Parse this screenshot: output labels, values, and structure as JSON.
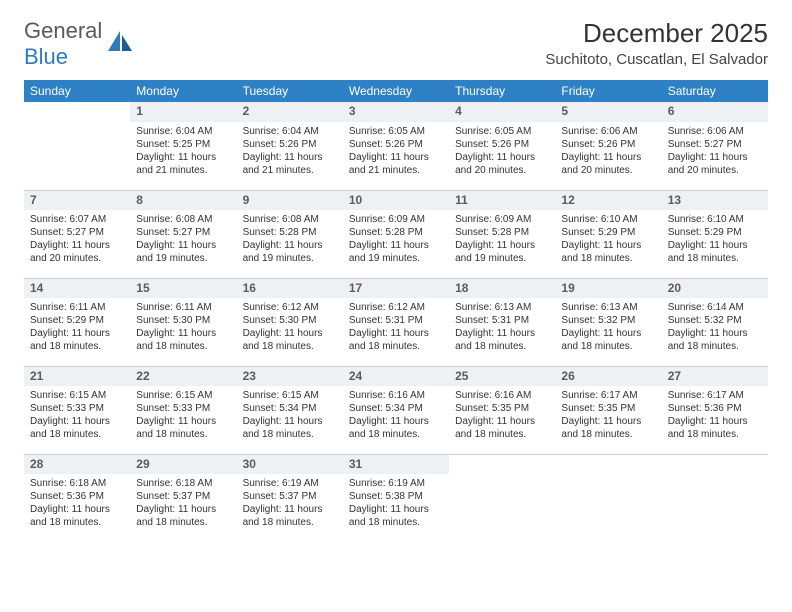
{
  "brand": {
    "part1": "General",
    "part2": "Blue",
    "accent": "#2d7bbd",
    "gray": "#5a5a5a"
  },
  "title": "December 2025",
  "location": "Suchitoto, Cuscatlan, El Salvador",
  "header_bg": "#2d81c4",
  "daynum_bg": "#eef1f4",
  "divider": "#c8d2da",
  "weekdays": [
    "Sunday",
    "Monday",
    "Tuesday",
    "Wednesday",
    "Thursday",
    "Friday",
    "Saturday"
  ],
  "labels": {
    "sunrise": "Sunrise:",
    "sunset": "Sunset:",
    "daylight": "Daylight:"
  },
  "grid": [
    [
      {
        "empty": true
      },
      {
        "n": "1",
        "sr": "6:04 AM",
        "ss": "5:25 PM",
        "d1": "11 hours",
        "d2": "and 21 minutes."
      },
      {
        "n": "2",
        "sr": "6:04 AM",
        "ss": "5:26 PM",
        "d1": "11 hours",
        "d2": "and 21 minutes."
      },
      {
        "n": "3",
        "sr": "6:05 AM",
        "ss": "5:26 PM",
        "d1": "11 hours",
        "d2": "and 21 minutes."
      },
      {
        "n": "4",
        "sr": "6:05 AM",
        "ss": "5:26 PM",
        "d1": "11 hours",
        "d2": "and 20 minutes."
      },
      {
        "n": "5",
        "sr": "6:06 AM",
        "ss": "5:26 PM",
        "d1": "11 hours",
        "d2": "and 20 minutes."
      },
      {
        "n": "6",
        "sr": "6:06 AM",
        "ss": "5:27 PM",
        "d1": "11 hours",
        "d2": "and 20 minutes."
      }
    ],
    [
      {
        "n": "7",
        "sr": "6:07 AM",
        "ss": "5:27 PM",
        "d1": "11 hours",
        "d2": "and 20 minutes."
      },
      {
        "n": "8",
        "sr": "6:08 AM",
        "ss": "5:27 PM",
        "d1": "11 hours",
        "d2": "and 19 minutes."
      },
      {
        "n": "9",
        "sr": "6:08 AM",
        "ss": "5:28 PM",
        "d1": "11 hours",
        "d2": "and 19 minutes."
      },
      {
        "n": "10",
        "sr": "6:09 AM",
        "ss": "5:28 PM",
        "d1": "11 hours",
        "d2": "and 19 minutes."
      },
      {
        "n": "11",
        "sr": "6:09 AM",
        "ss": "5:28 PM",
        "d1": "11 hours",
        "d2": "and 19 minutes."
      },
      {
        "n": "12",
        "sr": "6:10 AM",
        "ss": "5:29 PM",
        "d1": "11 hours",
        "d2": "and 18 minutes."
      },
      {
        "n": "13",
        "sr": "6:10 AM",
        "ss": "5:29 PM",
        "d1": "11 hours",
        "d2": "and 18 minutes."
      }
    ],
    [
      {
        "n": "14",
        "sr": "6:11 AM",
        "ss": "5:29 PM",
        "d1": "11 hours",
        "d2": "and 18 minutes."
      },
      {
        "n": "15",
        "sr": "6:11 AM",
        "ss": "5:30 PM",
        "d1": "11 hours",
        "d2": "and 18 minutes."
      },
      {
        "n": "16",
        "sr": "6:12 AM",
        "ss": "5:30 PM",
        "d1": "11 hours",
        "d2": "and 18 minutes."
      },
      {
        "n": "17",
        "sr": "6:12 AM",
        "ss": "5:31 PM",
        "d1": "11 hours",
        "d2": "and 18 minutes."
      },
      {
        "n": "18",
        "sr": "6:13 AM",
        "ss": "5:31 PM",
        "d1": "11 hours",
        "d2": "and 18 minutes."
      },
      {
        "n": "19",
        "sr": "6:13 AM",
        "ss": "5:32 PM",
        "d1": "11 hours",
        "d2": "and 18 minutes."
      },
      {
        "n": "20",
        "sr": "6:14 AM",
        "ss": "5:32 PM",
        "d1": "11 hours",
        "d2": "and 18 minutes."
      }
    ],
    [
      {
        "n": "21",
        "sr": "6:15 AM",
        "ss": "5:33 PM",
        "d1": "11 hours",
        "d2": "and 18 minutes."
      },
      {
        "n": "22",
        "sr": "6:15 AM",
        "ss": "5:33 PM",
        "d1": "11 hours",
        "d2": "and 18 minutes."
      },
      {
        "n": "23",
        "sr": "6:15 AM",
        "ss": "5:34 PM",
        "d1": "11 hours",
        "d2": "and 18 minutes."
      },
      {
        "n": "24",
        "sr": "6:16 AM",
        "ss": "5:34 PM",
        "d1": "11 hours",
        "d2": "and 18 minutes."
      },
      {
        "n": "25",
        "sr": "6:16 AM",
        "ss": "5:35 PM",
        "d1": "11 hours",
        "d2": "and 18 minutes."
      },
      {
        "n": "26",
        "sr": "6:17 AM",
        "ss": "5:35 PM",
        "d1": "11 hours",
        "d2": "and 18 minutes."
      },
      {
        "n": "27",
        "sr": "6:17 AM",
        "ss": "5:36 PM",
        "d1": "11 hours",
        "d2": "and 18 minutes."
      }
    ],
    [
      {
        "n": "28",
        "sr": "6:18 AM",
        "ss": "5:36 PM",
        "d1": "11 hours",
        "d2": "and 18 minutes."
      },
      {
        "n": "29",
        "sr": "6:18 AM",
        "ss": "5:37 PM",
        "d1": "11 hours",
        "d2": "and 18 minutes."
      },
      {
        "n": "30",
        "sr": "6:19 AM",
        "ss": "5:37 PM",
        "d1": "11 hours",
        "d2": "and 18 minutes."
      },
      {
        "n": "31",
        "sr": "6:19 AM",
        "ss": "5:38 PM",
        "d1": "11 hours",
        "d2": "and 18 minutes."
      },
      {
        "empty": true
      },
      {
        "empty": true
      },
      {
        "empty": true
      }
    ]
  ]
}
